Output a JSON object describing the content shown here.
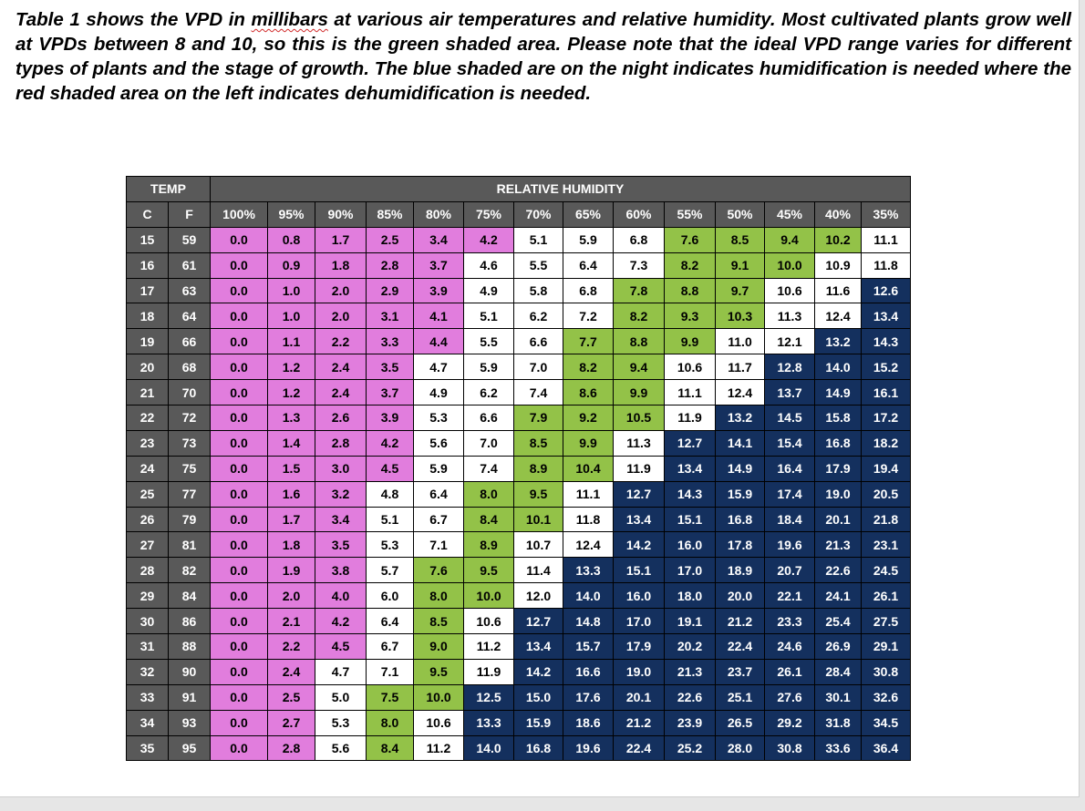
{
  "intro": {
    "part1": "Table 1 shows the VPD in ",
    "underlined": "millibars",
    "part2": " at various air temperatures and relative humidity. Most cultivated plants grow well at VPDs between 8 and 10, so this is the green shaded area. Please note that the ideal VPD range varies for different types of plants and the stage of growth. The blue shaded are on the night indicates humidification is needed where the red shaded area on the left indicates dehumidification is needed."
  },
  "table": {
    "temp_header": "TEMP",
    "rh_header": "RELATIVE HUMIDITY",
    "c_label": "C",
    "f_label": "F",
    "humidity_columns": [
      "100%",
      "95%",
      "90%",
      "85%",
      "80%",
      "75%",
      "70%",
      "65%",
      "60%",
      "55%",
      "50%",
      "45%",
      "40%",
      "35%"
    ],
    "colors": {
      "header": "#595959",
      "pink": "#e17ddd",
      "white": "#ffffff",
      "green": "#93c248",
      "navy": "#14305e"
    },
    "rows": [
      {
        "c": "15",
        "f": "59",
        "values": [
          "0.0",
          "0.8",
          "1.7",
          "2.5",
          "3.4",
          "4.2",
          "5.1",
          "5.9",
          "6.8",
          "7.6",
          "8.5",
          "9.4",
          "10.2",
          "11.1"
        ],
        "shades": [
          "P",
          "P",
          "P",
          "P",
          "P",
          "P",
          "W",
          "W",
          "W",
          "G",
          "G",
          "G",
          "G",
          "W"
        ]
      },
      {
        "c": "16",
        "f": "61",
        "values": [
          "0.0",
          "0.9",
          "1.8",
          "2.8",
          "3.7",
          "4.6",
          "5.5",
          "6.4",
          "7.3",
          "8.2",
          "9.1",
          "10.0",
          "10.9",
          "11.8"
        ],
        "shades": [
          "P",
          "P",
          "P",
          "P",
          "P",
          "W",
          "W",
          "W",
          "W",
          "G",
          "G",
          "G",
          "W",
          "W"
        ]
      },
      {
        "c": "17",
        "f": "63",
        "values": [
          "0.0",
          "1.0",
          "2.0",
          "2.9",
          "3.9",
          "4.9",
          "5.8",
          "6.8",
          "7.8",
          "8.8",
          "9.7",
          "10.6",
          "11.6",
          "12.6"
        ],
        "shades": [
          "P",
          "P",
          "P",
          "P",
          "P",
          "W",
          "W",
          "W",
          "G",
          "G",
          "G",
          "W",
          "W",
          "N"
        ]
      },
      {
        "c": "18",
        "f": "64",
        "values": [
          "0.0",
          "1.0",
          "2.0",
          "3.1",
          "4.1",
          "5.1",
          "6.2",
          "7.2",
          "8.2",
          "9.3",
          "10.3",
          "11.3",
          "12.4",
          "13.4"
        ],
        "shades": [
          "P",
          "P",
          "P",
          "P",
          "P",
          "W",
          "W",
          "W",
          "G",
          "G",
          "G",
          "W",
          "W",
          "N"
        ]
      },
      {
        "c": "19",
        "f": "66",
        "values": [
          "0.0",
          "1.1",
          "2.2",
          "3.3",
          "4.4",
          "5.5",
          "6.6",
          "7.7",
          "8.8",
          "9.9",
          "11.0",
          "12.1",
          "13.2",
          "14.3"
        ],
        "shades": [
          "P",
          "P",
          "P",
          "P",
          "P",
          "W",
          "W",
          "G",
          "G",
          "G",
          "W",
          "W",
          "N",
          "N"
        ]
      },
      {
        "c": "20",
        "f": "68",
        "values": [
          "0.0",
          "1.2",
          "2.4",
          "3.5",
          "4.7",
          "5.9",
          "7.0",
          "8.2",
          "9.4",
          "10.6",
          "11.7",
          "12.8",
          "14.0",
          "15.2"
        ],
        "shades": [
          "P",
          "P",
          "P",
          "P",
          "W",
          "W",
          "W",
          "G",
          "G",
          "W",
          "W",
          "N",
          "N",
          "N"
        ]
      },
      {
        "c": "21",
        "f": "70",
        "values": [
          "0.0",
          "1.2",
          "2.4",
          "3.7",
          "4.9",
          "6.2",
          "7.4",
          "8.6",
          "9.9",
          "11.1",
          "12.4",
          "13.7",
          "14.9",
          "16.1"
        ],
        "shades": [
          "P",
          "P",
          "P",
          "P",
          "W",
          "W",
          "W",
          "G",
          "G",
          "W",
          "W",
          "N",
          "N",
          "N"
        ]
      },
      {
        "c": "22",
        "f": "72",
        "values": [
          "0.0",
          "1.3",
          "2.6",
          "3.9",
          "5.3",
          "6.6",
          "7.9",
          "9.2",
          "10.5",
          "11.9",
          "13.2",
          "14.5",
          "15.8",
          "17.2"
        ],
        "shades": [
          "P",
          "P",
          "P",
          "P",
          "W",
          "W",
          "G",
          "G",
          "G",
          "W",
          "N",
          "N",
          "N",
          "N"
        ]
      },
      {
        "c": "23",
        "f": "73",
        "values": [
          "0.0",
          "1.4",
          "2.8",
          "4.2",
          "5.6",
          "7.0",
          "8.5",
          "9.9",
          "11.3",
          "12.7",
          "14.1",
          "15.4",
          "16.8",
          "18.2"
        ],
        "shades": [
          "P",
          "P",
          "P",
          "P",
          "W",
          "W",
          "G",
          "G",
          "W",
          "N",
          "N",
          "N",
          "N",
          "N"
        ]
      },
      {
        "c": "24",
        "f": "75",
        "values": [
          "0.0",
          "1.5",
          "3.0",
          "4.5",
          "5.9",
          "7.4",
          "8.9",
          "10.4",
          "11.9",
          "13.4",
          "14.9",
          "16.4",
          "17.9",
          "19.4"
        ],
        "shades": [
          "P",
          "P",
          "P",
          "P",
          "W",
          "W",
          "G",
          "G",
          "W",
          "N",
          "N",
          "N",
          "N",
          "N"
        ]
      },
      {
        "c": "25",
        "f": "77",
        "values": [
          "0.0",
          "1.6",
          "3.2",
          "4.8",
          "6.4",
          "8.0",
          "9.5",
          "11.1",
          "12.7",
          "14.3",
          "15.9",
          "17.4",
          "19.0",
          "20.5"
        ],
        "shades": [
          "P",
          "P",
          "P",
          "W",
          "W",
          "G",
          "G",
          "W",
          "N",
          "N",
          "N",
          "N",
          "N",
          "N"
        ]
      },
      {
        "c": "26",
        "f": "79",
        "values": [
          "0.0",
          "1.7",
          "3.4",
          "5.1",
          "6.7",
          "8.4",
          "10.1",
          "11.8",
          "13.4",
          "15.1",
          "16.8",
          "18.4",
          "20.1",
          "21.8"
        ],
        "shades": [
          "P",
          "P",
          "P",
          "W",
          "W",
          "G",
          "G",
          "W",
          "N",
          "N",
          "N",
          "N",
          "N",
          "N"
        ]
      },
      {
        "c": "27",
        "f": "81",
        "values": [
          "0.0",
          "1.8",
          "3.5",
          "5.3",
          "7.1",
          "8.9",
          "10.7",
          "12.4",
          "14.2",
          "16.0",
          "17.8",
          "19.6",
          "21.3",
          "23.1"
        ],
        "shades": [
          "P",
          "P",
          "P",
          "W",
          "W",
          "G",
          "W",
          "W",
          "N",
          "N",
          "N",
          "N",
          "N",
          "N"
        ]
      },
      {
        "c": "28",
        "f": "82",
        "values": [
          "0.0",
          "1.9",
          "3.8",
          "5.7",
          "7.6",
          "9.5",
          "11.4",
          "13.3",
          "15.1",
          "17.0",
          "18.9",
          "20.7",
          "22.6",
          "24.5"
        ],
        "shades": [
          "P",
          "P",
          "P",
          "W",
          "G",
          "G",
          "W",
          "N",
          "N",
          "N",
          "N",
          "N",
          "N",
          "N"
        ]
      },
      {
        "c": "29",
        "f": "84",
        "values": [
          "0.0",
          "2.0",
          "4.0",
          "6.0",
          "8.0",
          "10.0",
          "12.0",
          "14.0",
          "16.0",
          "18.0",
          "20.0",
          "22.1",
          "24.1",
          "26.1"
        ],
        "shades": [
          "P",
          "P",
          "P",
          "W",
          "G",
          "G",
          "W",
          "N",
          "N",
          "N",
          "N",
          "N",
          "N",
          "N"
        ]
      },
      {
        "c": "30",
        "f": "86",
        "values": [
          "0.0",
          "2.1",
          "4.2",
          "6.4",
          "8.5",
          "10.6",
          "12.7",
          "14.8",
          "17.0",
          "19.1",
          "21.2",
          "23.3",
          "25.4",
          "27.5"
        ],
        "shades": [
          "P",
          "P",
          "P",
          "W",
          "G",
          "W",
          "N",
          "N",
          "N",
          "N",
          "N",
          "N",
          "N",
          "N"
        ]
      },
      {
        "c": "31",
        "f": "88",
        "values": [
          "0.0",
          "2.2",
          "4.5",
          "6.7",
          "9.0",
          "11.2",
          "13.4",
          "15.7",
          "17.9",
          "20.2",
          "22.4",
          "24.6",
          "26.9",
          "29.1"
        ],
        "shades": [
          "P",
          "P",
          "P",
          "W",
          "G",
          "W",
          "N",
          "N",
          "N",
          "N",
          "N",
          "N",
          "N",
          "N"
        ]
      },
      {
        "c": "32",
        "f": "90",
        "values": [
          "0.0",
          "2.4",
          "4.7",
          "7.1",
          "9.5",
          "11.9",
          "14.2",
          "16.6",
          "19.0",
          "21.3",
          "23.7",
          "26.1",
          "28.4",
          "30.8"
        ],
        "shades": [
          "P",
          "P",
          "W",
          "W",
          "G",
          "W",
          "N",
          "N",
          "N",
          "N",
          "N",
          "N",
          "N",
          "N"
        ]
      },
      {
        "c": "33",
        "f": "91",
        "values": [
          "0.0",
          "2.5",
          "5.0",
          "7.5",
          "10.0",
          "12.5",
          "15.0",
          "17.6",
          "20.1",
          "22.6",
          "25.1",
          "27.6",
          "30.1",
          "32.6"
        ],
        "shades": [
          "P",
          "P",
          "W",
          "G",
          "G",
          "N",
          "N",
          "N",
          "N",
          "N",
          "N",
          "N",
          "N",
          "N"
        ]
      },
      {
        "c": "34",
        "f": "93",
        "values": [
          "0.0",
          "2.7",
          "5.3",
          "8.0",
          "10.6",
          "13.3",
          "15.9",
          "18.6",
          "21.2",
          "23.9",
          "26.5",
          "29.2",
          "31.8",
          "34.5"
        ],
        "shades": [
          "P",
          "P",
          "W",
          "G",
          "W",
          "N",
          "N",
          "N",
          "N",
          "N",
          "N",
          "N",
          "N",
          "N"
        ]
      },
      {
        "c": "35",
        "f": "95",
        "values": [
          "0.0",
          "2.8",
          "5.6",
          "8.4",
          "11.2",
          "14.0",
          "16.8",
          "19.6",
          "22.4",
          "25.2",
          "28.0",
          "30.8",
          "33.6",
          "36.4"
        ],
        "shades": [
          "P",
          "P",
          "W",
          "G",
          "W",
          "N",
          "N",
          "N",
          "N",
          "N",
          "N",
          "N",
          "N",
          "N"
        ]
      }
    ]
  }
}
